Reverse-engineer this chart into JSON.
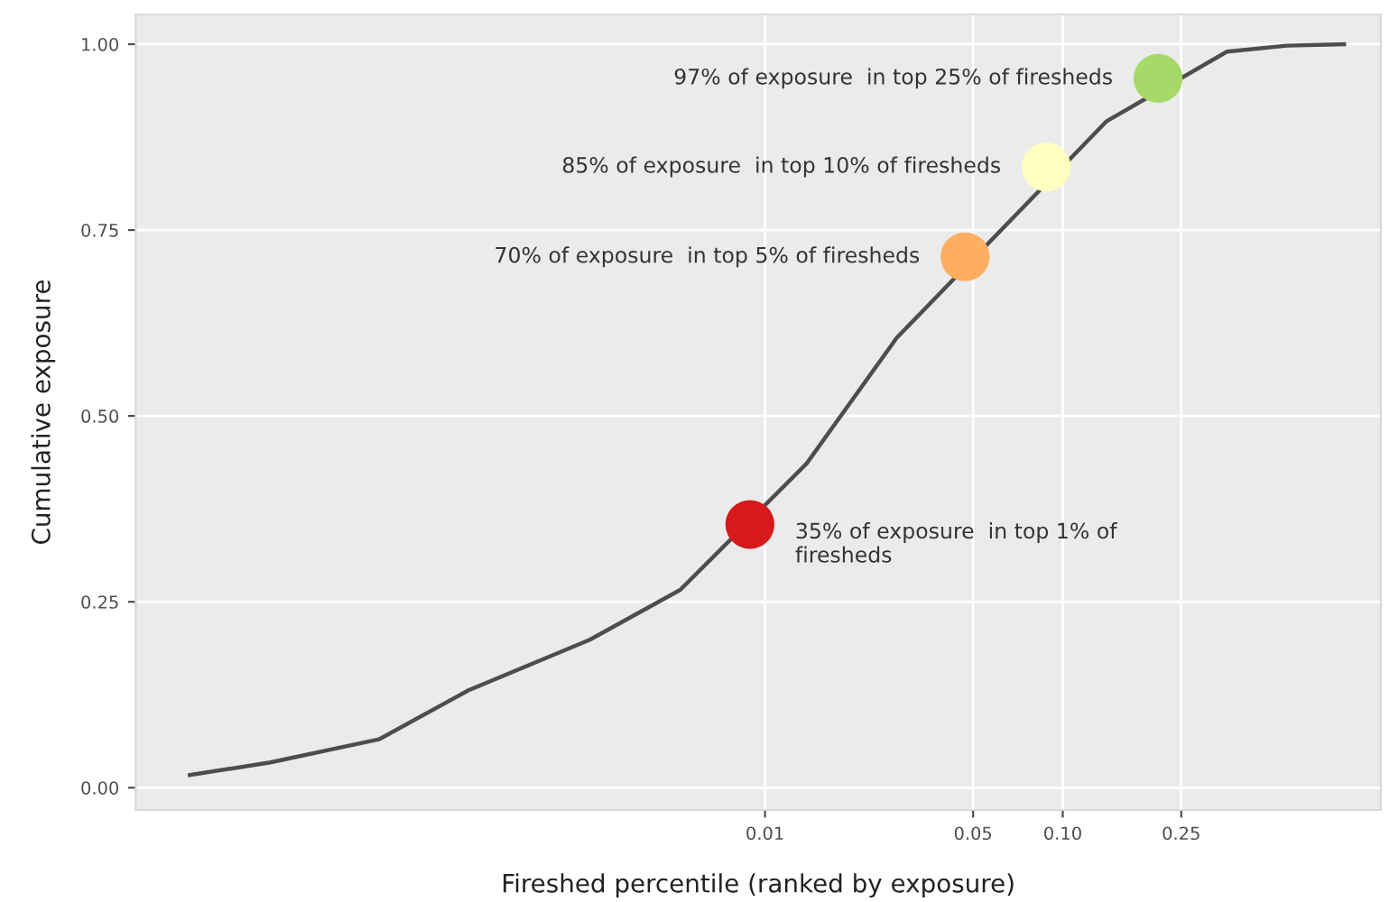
{
  "chart_data": {
    "type": "line",
    "xlabel": "Fireshed percentile (ranked by exposure)",
    "ylabel": "Cumulative exposure",
    "log": "x",
    "xlim": [
      7.7e-05,
      1.17
    ],
    "ylim": [
      -0.03,
      1.04
    ],
    "xticks": [
      {
        "value": 0.01,
        "label": "0.01"
      },
      {
        "value": 0.05,
        "label": "0.05"
      },
      {
        "value": 0.1,
        "label": "0.10"
      },
      {
        "value": 0.25,
        "label": "0.25"
      }
    ],
    "yticks": [
      {
        "value": 0,
        "label": "0.00"
      },
      {
        "value": 0.25,
        "label": "0.25"
      },
      {
        "value": 0.5,
        "label": "0.50"
      },
      {
        "value": 0.75,
        "label": "0.75"
      },
      {
        "value": 1,
        "label": "1.00"
      }
    ],
    "grid": true,
    "marker": "none",
    "series": [
      {
        "color": "#4d4d4d",
        "x": [
          0.000117,
          0.000218,
          0.000505,
          0.00101,
          0.00258,
          0.00519,
          0.0138,
          0.0277,
          0.14,
          0.356,
          0.565,
          0.881
        ],
        "values": [
          0.017,
          0.034,
          0.065,
          0.131,
          0.199,
          0.266,
          0.436,
          0.605,
          0.896,
          0.99,
          0.998,
          1.0
        ]
      },
      {
        "type": "scatter",
        "marker": "circle",
        "x": [
          0.0089,
          0.047,
          0.088,
          0.209
        ],
        "values": [
          0.354,
          0.714,
          0.835,
          0.954
        ],
        "colors": [
          "#d7191c",
          "#fdae61",
          "#ffffbf",
          "#a6d96a"
        ]
      }
    ],
    "annotations": [
      {
        "text": "35% of exposure  in top 1% of\nfiresheds",
        "x": 0.0089,
        "y": 0.354
      },
      {
        "text": "70% of exposure  in top 5% of firesheds",
        "x": 0.047,
        "y": 0.714
      },
      {
        "text": "85% of exposure  in top 10% of firesheds",
        "x": 0.088,
        "y": 0.835
      },
      {
        "text": "97% of exposure  in top 25% of firesheds",
        "x": 0.209,
        "y": 0.954
      }
    ]
  }
}
